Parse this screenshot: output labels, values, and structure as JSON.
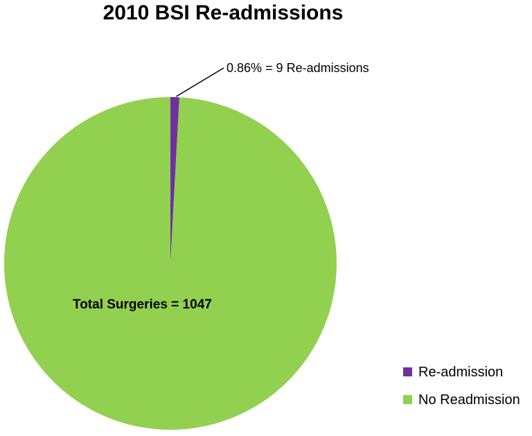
{
  "chart_data": {
    "type": "pie",
    "title": "2010 BSI Re-admissions",
    "slices": [
      {
        "label": "Re-admission",
        "value": 9,
        "color": "#7030A0"
      },
      {
        "label": "No Readmission",
        "value": 1038,
        "color": "#92D050"
      }
    ],
    "data_labels": {
      "readmission": "0.86% = 9 Re-admissions",
      "total": "Total Surgeries = 1047"
    },
    "legend": {
      "position": "bottom-right",
      "entries": [
        "Re-admission",
        "No Readmission"
      ]
    }
  }
}
